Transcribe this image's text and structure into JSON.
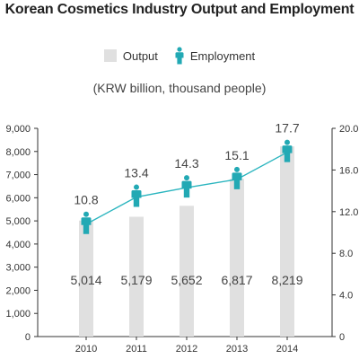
{
  "chart_data": {
    "type": "bar",
    "title": "Korean Cosmetics Industry Output and Employment",
    "subtitle": "(KRW billion, thousand people)",
    "categories": [
      "2010",
      "2011",
      "2012",
      "2013",
      "2014"
    ],
    "series": [
      {
        "name": "Output",
        "type": "bar",
        "axis": "left",
        "values": [
          5014,
          5179,
          5652,
          6817,
          8219
        ],
        "value_labels": [
          "5,014",
          "5,179",
          "5,652",
          "6,817",
          "8,219"
        ]
      },
      {
        "name": "Employment",
        "type": "line",
        "axis": "right",
        "values": [
          10.8,
          13.4,
          14.3,
          15.1,
          17.7
        ],
        "value_labels": [
          "10.8",
          "13.4",
          "14.3",
          "15.1",
          "17.7"
        ]
      }
    ],
    "y_left": {
      "range": [
        0,
        9000
      ],
      "ticks": [
        "0",
        "1,000",
        "2,000",
        "3,000",
        "4,000",
        "5,000",
        "6,000",
        "7,000",
        "8,000",
        "9,000"
      ]
    },
    "y_right": {
      "range": [
        0,
        20
      ],
      "ticks": [
        "0",
        "4.0",
        "8.0",
        "12.0",
        "16.0",
        "20.0"
      ]
    },
    "legend_position": "top-center",
    "grid": false
  },
  "colors": {
    "bar": "#e0e0e0",
    "line": "#2bb5bf",
    "icon": "#22a9b4"
  },
  "legend": {
    "output_label": "Output",
    "employment_label": "Employment"
  }
}
